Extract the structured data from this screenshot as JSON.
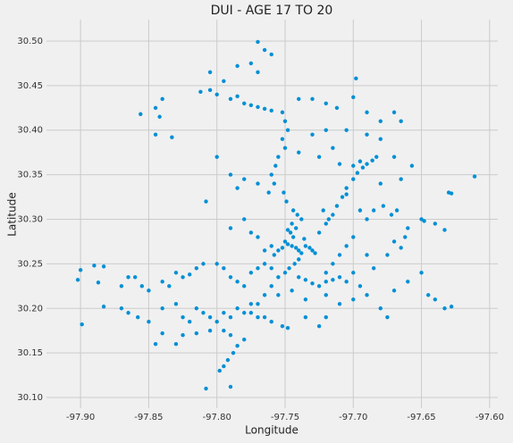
{
  "chart_data": {
    "type": "scatter",
    "title": "DUI - AGE 17 TO 20",
    "xlabel": "Longitude",
    "ylabel": "Latitude",
    "color": "#008fd5",
    "grid": true,
    "xlim": [
      -97.925,
      -97.594
    ],
    "ylim": [
      30.088,
      30.524
    ],
    "xticks": [
      {
        "value": -97.9,
        "label": "-97.90"
      },
      {
        "value": -97.85,
        "label": "-97.85"
      },
      {
        "value": -97.8,
        "label": "-97.80"
      },
      {
        "value": -97.75,
        "label": "-97.75"
      },
      {
        "value": -97.7,
        "label": "-97.70"
      },
      {
        "value": -97.65,
        "label": "-97.65"
      },
      {
        "value": -97.6,
        "label": "-97.60"
      }
    ],
    "yticks": [
      {
        "value": 30.1,
        "label": "30.10"
      },
      {
        "value": 30.15,
        "label": "30.15"
      },
      {
        "value": 30.2,
        "label": "30.20"
      },
      {
        "value": 30.25,
        "label": "30.25"
      },
      {
        "value": 30.3,
        "label": "30.30"
      },
      {
        "value": 30.35,
        "label": "30.35"
      },
      {
        "value": 30.4,
        "label": "30.40"
      },
      {
        "value": 30.45,
        "label": "30.45"
      },
      {
        "value": 30.5,
        "label": "30.50"
      }
    ],
    "x": [
      -97.745,
      -97.742,
      -97.748,
      -97.74,
      -97.75,
      -97.738,
      -97.744,
      -97.746,
      -97.742,
      -97.745,
      -97.748,
      -97.752,
      -97.755,
      -97.735,
      -97.732,
      -97.73,
      -97.728,
      -97.76,
      -97.765,
      -97.758,
      -97.74,
      -97.743,
      -97.747,
      -97.75,
      -97.736,
      -97.738,
      -97.741,
      -97.744,
      -97.749,
      -97.751,
      -97.725,
      -97.72,
      -97.715,
      -97.712,
      -97.708,
      -97.705,
      -97.7,
      -97.697,
      -97.693,
      -97.69,
      -97.686,
      -97.683,
      -97.7,
      -97.71,
      -97.695,
      -97.705,
      -97.718,
      -97.722,
      -97.755,
      -97.76,
      -97.765,
      -97.77,
      -97.775,
      -97.765,
      -97.76,
      -97.752,
      -97.748,
      -97.752,
      -97.75,
      -97.748,
      -97.752,
      -97.75,
      -97.755,
      -97.757,
      -97.76,
      -97.758,
      -97.762,
      -97.8,
      -97.79,
      -97.78,
      -97.775,
      -97.77,
      -97.765,
      -97.76,
      -97.785,
      -97.77,
      -97.765,
      -97.76,
      -97.775,
      -97.785,
      -97.77,
      -97.805,
      -97.795,
      -97.805,
      -97.812,
      -97.74,
      -97.73,
      -97.72,
      -97.7,
      -97.698,
      -97.712,
      -97.69,
      -97.68,
      -97.67,
      -97.665,
      -97.72,
      -97.73,
      -97.705,
      -97.69,
      -97.68,
      -97.74,
      -97.725,
      -97.715,
      -97.856,
      -97.845,
      -97.84,
      -97.842,
      -97.845,
      -97.833,
      -97.8,
      -97.79,
      -97.78,
      -97.785,
      -97.77,
      -97.808,
      -97.78,
      -97.79,
      -97.775,
      -97.77,
      -97.611,
      -97.63,
      -97.628,
      -97.65,
      -97.648,
      -97.64,
      -97.633,
      -97.66,
      -97.662,
      -97.67,
      -97.665,
      -97.675,
      -97.68,
      -97.665,
      -97.657,
      -97.67,
      -97.668,
      -97.672,
      -97.678,
      -97.685,
      -97.69,
      -97.695,
      -97.7,
      -97.705,
      -97.71,
      -97.715,
      -97.86,
      -97.855,
      -97.85,
      -97.84,
      -97.835,
      -97.83,
      -97.825,
      -97.82,
      -97.815,
      -97.81,
      -97.8,
      -97.795,
      -97.79,
      -97.785,
      -97.78,
      -97.775,
      -97.77,
      -97.765,
      -97.76,
      -97.74,
      -97.735,
      -97.73,
      -97.725,
      -97.72,
      -97.715,
      -97.71,
      -97.705,
      -97.7,
      -97.695,
      -97.69,
      -97.7,
      -97.71,
      -97.72,
      -97.735,
      -97.745,
      -97.755,
      -97.87,
      -97.865,
      -97.858,
      -97.85,
      -97.84,
      -97.83,
      -97.825,
      -97.82,
      -97.815,
      -97.81,
      -97.805,
      -97.8,
      -97.795,
      -97.79,
      -97.785,
      -97.78,
      -97.775,
      -97.77,
      -97.795,
      -97.805,
      -97.815,
      -97.825,
      -97.84,
      -97.845,
      -97.83,
      -97.79,
      -97.78,
      -97.785,
      -97.788,
      -97.792,
      -97.795,
      -97.798,
      -97.808,
      -97.79,
      -97.9,
      -97.902,
      -97.899,
      -97.89,
      -97.883,
      -97.887,
      -97.883,
      -97.87,
      -97.865,
      -97.65,
      -97.64,
      -97.645,
      -97.633,
      -97.628,
      -97.66,
      -97.67,
      -97.68,
      -97.675,
      -97.685,
      -97.69,
      -97.72,
      -97.725,
      -97.735,
      -97.72
    ],
    "y": [
      30.27,
      30.268,
      30.272,
      30.265,
      30.275,
      30.262,
      30.28,
      30.285,
      30.29,
      30.295,
      30.288,
      30.268,
      30.265,
      30.27,
      30.268,
      30.265,
      30.262,
      30.27,
      30.265,
      30.26,
      30.255,
      30.25,
      30.245,
      30.24,
      30.278,
      30.3,
      30.305,
      30.31,
      30.32,
      30.33,
      30.285,
      30.295,
      30.305,
      30.315,
      30.325,
      30.335,
      30.345,
      30.352,
      30.358,
      30.362,
      30.366,
      30.37,
      30.36,
      30.362,
      30.365,
      30.328,
      30.3,
      30.31,
      30.235,
      30.225,
      30.215,
      30.205,
      30.195,
      30.19,
      30.185,
      30.18,
      30.178,
      30.42,
      30.41,
      30.4,
      30.39,
      30.38,
      30.37,
      30.36,
      30.35,
      30.34,
      30.33,
      30.44,
      30.435,
      30.43,
      30.428,
      30.426,
      30.424,
      30.422,
      30.438,
      30.499,
      30.49,
      30.485,
      30.475,
      30.472,
      30.465,
      30.465,
      30.455,
      30.445,
      30.443,
      30.435,
      30.435,
      30.43,
      30.437,
      30.458,
      30.425,
      30.42,
      30.41,
      30.42,
      30.41,
      30.4,
      30.395,
      30.4,
      30.395,
      30.39,
      30.375,
      30.37,
      30.38,
      30.418,
      30.425,
      30.435,
      30.415,
      30.395,
      30.392,
      30.37,
      30.35,
      30.345,
      30.335,
      30.34,
      30.32,
      30.3,
      30.29,
      30.285,
      30.28,
      30.348,
      30.33,
      30.329,
      30.3,
      30.298,
      30.295,
      30.288,
      30.29,
      30.28,
      30.275,
      30.268,
      30.26,
      30.34,
      30.345,
      30.36,
      30.37,
      30.31,
      30.305,
      30.315,
      30.31,
      30.3,
      30.31,
      30.28,
      30.27,
      30.26,
      30.25,
      30.235,
      30.225,
      30.22,
      30.23,
      30.225,
      30.24,
      30.235,
      30.238,
      30.245,
      30.25,
      30.25,
      30.245,
      30.235,
      30.23,
      30.225,
      30.24,
      30.245,
      30.25,
      30.245,
      30.235,
      30.232,
      30.228,
      30.225,
      30.23,
      30.232,
      30.235,
      30.23,
      30.24,
      30.225,
      30.215,
      30.21,
      30.205,
      30.215,
      30.21,
      30.22,
      30.215,
      30.2,
      30.195,
      30.19,
      30.185,
      30.2,
      30.205,
      30.19,
      30.185,
      30.2,
      30.195,
      30.19,
      30.185,
      30.195,
      30.19,
      30.2,
      30.195,
      30.205,
      30.19,
      30.175,
      30.175,
      30.172,
      30.17,
      30.172,
      30.16,
      30.16,
      30.17,
      30.165,
      30.158,
      30.15,
      30.142,
      30.135,
      30.13,
      30.11,
      30.112,
      30.243,
      30.232,
      30.182,
      30.248,
      30.247,
      30.229,
      30.202,
      30.225,
      30.235,
      30.24,
      30.21,
      30.215,
      30.2,
      30.202,
      30.23,
      30.22,
      30.2,
      30.19,
      30.245,
      30.26,
      30.24,
      30.18,
      30.19,
      30.19
    ]
  }
}
